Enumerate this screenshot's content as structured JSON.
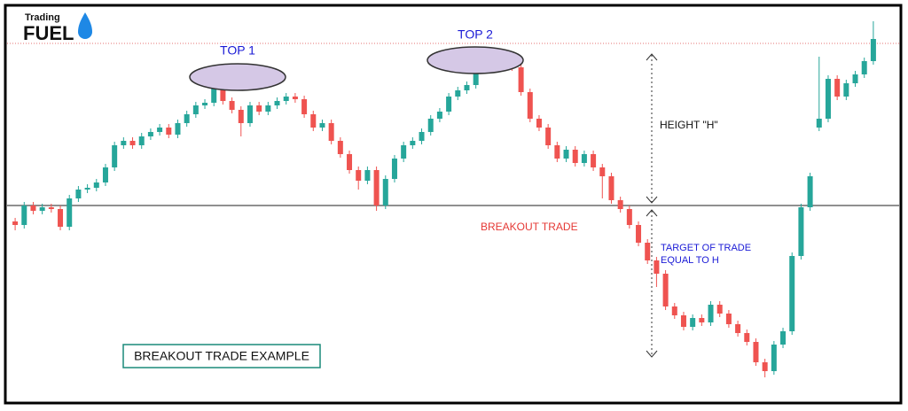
{
  "chart_data": {
    "type": "candlestick",
    "logo": {
      "top": "Trading",
      "bottom": "FUEL"
    },
    "annotations": {
      "top1": "TOP 1",
      "top2": "TOP 2",
      "height": "HEIGHT \"H\"",
      "breakout": "BREAKOUT TRADE",
      "target": [
        "TARGET OF TRADE",
        "EQUAL TO H"
      ],
      "example": "BREAKOUT TRADE EXAMPLE"
    },
    "ylim": [
      0,
      464
    ],
    "up_color": "#26a69a",
    "down_color": "#ef5350",
    "breakout_level": 232,
    "resistance_level": 415,
    "open": [
      214,
      210,
      232,
      226,
      230,
      228,
      208,
      240,
      250,
      252,
      258,
      275,
      300,
      305,
      300,
      310,
      315,
      320,
      312,
      325,
      335,
      345,
      348,
      370,
      350,
      340,
      325,
      345,
      338,
      345,
      350,
      355,
      352,
      335,
      320,
      325,
      305,
      290,
      272,
      260,
      272,
      232,
      262,
      285,
      300,
      305,
      315,
      330,
      338,
      355,
      362,
      368,
      390,
      398,
      399,
      400,
      388,
      360,
      330,
      320,
      300,
      285,
      295,
      280,
      290,
      275,
      265,
      238,
      228,
      210,
      190,
      170,
      155,
      118,
      108,
      95,
      105,
      100,
      120,
      110,
      98,
      88,
      78,
      55,
      45,
      75,
      90,
      175,
      230,
      320,
      330,
      375,
      355,
      370,
      380,
      395
    ],
    "close": [
      210,
      232,
      226,
      230,
      228,
      208,
      240,
      250,
      252,
      258,
      275,
      300,
      305,
      300,
      310,
      315,
      320,
      312,
      325,
      335,
      345,
      348,
      370,
      350,
      340,
      325,
      345,
      338,
      345,
      350,
      355,
      352,
      335,
      320,
      325,
      305,
      290,
      272,
      260,
      272,
      232,
      262,
      285,
      300,
      305,
      315,
      330,
      338,
      355,
      362,
      368,
      390,
      398,
      399,
      400,
      388,
      360,
      330,
      320,
      300,
      285,
      295,
      280,
      290,
      275,
      265,
      238,
      228,
      210,
      190,
      170,
      155,
      118,
      108,
      95,
      105,
      100,
      120,
      110,
      98,
      88,
      78,
      55,
      45,
      75,
      90,
      175,
      230,
      265,
      330,
      375,
      355,
      370,
      380,
      395,
      420
    ],
    "high": [
      218,
      236,
      236,
      234,
      234,
      232,
      244,
      254,
      256,
      262,
      279,
      304,
      309,
      309,
      314,
      319,
      324,
      324,
      329,
      339,
      349,
      352,
      374,
      374,
      354,
      344,
      349,
      349,
      349,
      354,
      359,
      359,
      356,
      339,
      329,
      329,
      309,
      294,
      276,
      276,
      276,
      266,
      289,
      304,
      309,
      319,
      334,
      342,
      359,
      366,
      372,
      394,
      402,
      403,
      404,
      404,
      392,
      364,
      334,
      324,
      304,
      299,
      299,
      294,
      294,
      279,
      269,
      242,
      232,
      214,
      194,
      174,
      159,
      122,
      112,
      109,
      109,
      124,
      124,
      114,
      102,
      92,
      82,
      59,
      79,
      94,
      179,
      234,
      269,
      400,
      379,
      379,
      374,
      384,
      399,
      440
    ],
    "low": [
      204,
      206,
      222,
      222,
      224,
      204,
      204,
      236,
      246,
      248,
      254,
      271,
      296,
      296,
      296,
      306,
      311,
      308,
      308,
      321,
      331,
      341,
      344,
      346,
      336,
      310,
      321,
      334,
      334,
      341,
      346,
      348,
      331,
      316,
      316,
      301,
      286,
      268,
      250,
      256,
      226,
      228,
      258,
      281,
      296,
      301,
      311,
      326,
      334,
      351,
      358,
      364,
      386,
      394,
      395,
      384,
      356,
      326,
      316,
      296,
      281,
      281,
      276,
      276,
      271,
      240,
      234,
      224,
      206,
      186,
      166,
      140,
      114,
      104,
      91,
      91,
      96,
      96,
      106,
      94,
      84,
      74,
      51,
      38,
      41,
      71,
      86,
      171,
      226,
      316,
      326,
      351,
      351,
      366,
      376,
      391
    ]
  }
}
